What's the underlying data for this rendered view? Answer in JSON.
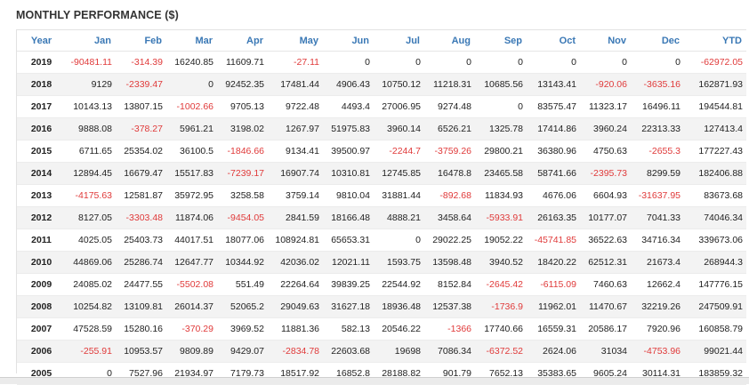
{
  "title": "MONTHLY PERFORMANCE ($)",
  "colors": {
    "header": "#3a78b5",
    "negative": "#e03a3a",
    "positive": "#222222"
  },
  "table": {
    "headers": [
      "Year",
      "Jan",
      "Feb",
      "Mar",
      "Apr",
      "May",
      "Jun",
      "Jul",
      "Aug",
      "Sep",
      "Oct",
      "Nov",
      "Dec",
      "YTD"
    ],
    "rows": [
      [
        "2019",
        "-90481.11",
        "-314.39",
        "16240.85",
        "11609.71",
        "-27.11",
        "0",
        "0",
        "0",
        "0",
        "0",
        "0",
        "0",
        "-62972.05"
      ],
      [
        "2018",
        "9129",
        "-2339.47",
        "0",
        "92452.35",
        "17481.44",
        "4906.43",
        "10750.12",
        "11218.31",
        "10685.56",
        "13143.41",
        "-920.06",
        "-3635.16",
        "162871.93"
      ],
      [
        "2017",
        "10143.13",
        "13807.15",
        "-1002.66",
        "9705.13",
        "9722.48",
        "4493.4",
        "27006.95",
        "9274.48",
        "0",
        "83575.47",
        "11323.17",
        "16496.11",
        "194544.81"
      ],
      [
        "2016",
        "9888.08",
        "-378.27",
        "5961.21",
        "3198.02",
        "1267.97",
        "51975.83",
        "3960.14",
        "6526.21",
        "1325.78",
        "17414.86",
        "3960.24",
        "22313.33",
        "127413.4"
      ],
      [
        "2015",
        "6711.65",
        "25354.02",
        "36100.5",
        "-1846.66",
        "9134.41",
        "39500.97",
        "-2244.7",
        "-3759.26",
        "29800.21",
        "36380.96",
        "4750.63",
        "-2655.3",
        "177227.43"
      ],
      [
        "2014",
        "12894.45",
        "16679.47",
        "15517.83",
        "-7239.17",
        "16907.74",
        "10310.81",
        "12745.85",
        "16478.8",
        "23465.58",
        "58741.66",
        "-2395.73",
        "8299.59",
        "182406.88"
      ],
      [
        "2013",
        "-4175.63",
        "12581.87",
        "35972.95",
        "3258.58",
        "3759.14",
        "9810.04",
        "31881.44",
        "-892.68",
        "11834.93",
        "4676.06",
        "6604.93",
        "-31637.95",
        "83673.68"
      ],
      [
        "2012",
        "8127.05",
        "-3303.48",
        "11874.06",
        "-9454.05",
        "2841.59",
        "18166.48",
        "4888.21",
        "3458.64",
        "-5933.91",
        "26163.35",
        "10177.07",
        "7041.33",
        "74046.34"
      ],
      [
        "2011",
        "4025.05",
        "25403.73",
        "44017.51",
        "18077.06",
        "108924.81",
        "65653.31",
        "0",
        "29022.25",
        "19052.22",
        "-45741.85",
        "36522.63",
        "34716.34",
        "339673.06"
      ],
      [
        "2010",
        "44869.06",
        "25286.74",
        "12647.77",
        "10344.92",
        "42036.02",
        "12021.11",
        "1593.75",
        "13598.48",
        "3940.52",
        "18420.22",
        "62512.31",
        "21673.4",
        "268944.3"
      ],
      [
        "2009",
        "24085.02",
        "24477.55",
        "-5502.08",
        "551.49",
        "22264.64",
        "39839.25",
        "22544.92",
        "8152.84",
        "-2645.42",
        "-6115.09",
        "7460.63",
        "12662.4",
        "147776.15"
      ],
      [
        "2008",
        "10254.82",
        "13109.81",
        "26014.37",
        "52065.2",
        "29049.63",
        "31627.18",
        "18936.48",
        "12537.38",
        "-1736.9",
        "11962.01",
        "11470.67",
        "32219.26",
        "247509.91"
      ],
      [
        "2007",
        "47528.59",
        "15280.16",
        "-370.29",
        "3969.52",
        "11881.36",
        "582.13",
        "20546.22",
        "-1366",
        "17740.66",
        "16559.31",
        "20586.17",
        "7920.96",
        "160858.79"
      ],
      [
        "2006",
        "-255.91",
        "10953.57",
        "9809.89",
        "9429.07",
        "-2834.78",
        "22603.68",
        "19698",
        "7086.34",
        "-6372.52",
        "2624.06",
        "31034",
        "-4753.96",
        "99021.44"
      ],
      [
        "2005",
        "0",
        "7527.96",
        "21934.97",
        "7179.73",
        "18517.92",
        "16852.8",
        "28188.82",
        "901.79",
        "7652.13",
        "35383.65",
        "9605.24",
        "30114.31",
        "183859.32"
      ]
    ]
  }
}
